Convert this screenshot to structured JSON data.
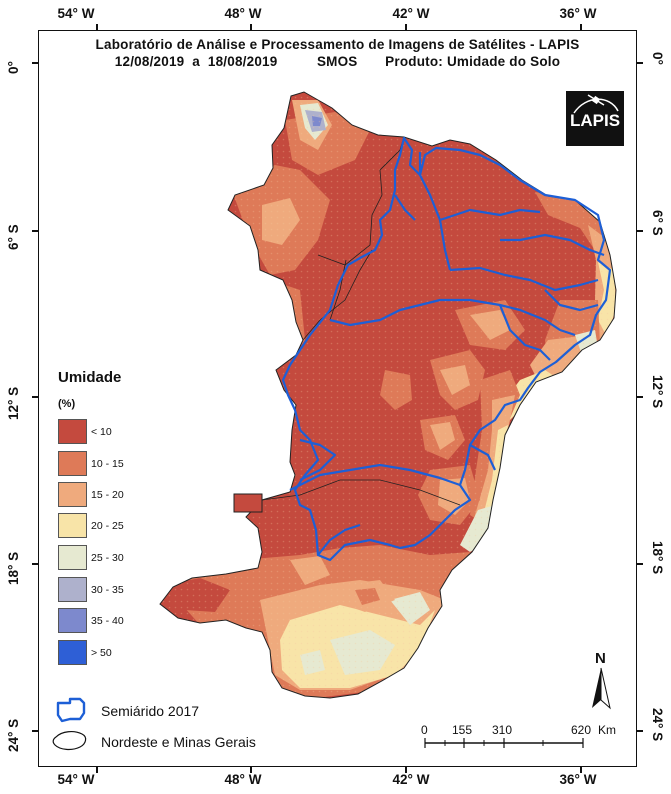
{
  "map": {
    "title_line1": "Laboratório de Análise e Processamento de Imagens de Satélites - LAPIS",
    "title_line2": "12/08/2019  a  18/08/2019          SMOS       Produto: Umidade do Solo",
    "longitude_ticks": [
      "54° W",
      "48° W",
      "42° W",
      "36° W"
    ],
    "latitude_ticks": [
      "0°",
      "6° S",
      "12° S",
      "18° S",
      "24° S"
    ],
    "logo_text": "LAPIS"
  },
  "legend": {
    "title": "Umidade",
    "unit": "(%)",
    "classes": [
      {
        "label": "< 10",
        "color": "#c44a3e"
      },
      {
        "label": "10 - 15",
        "color": "#de7a58"
      },
      {
        "label": "15 - 20",
        "color": "#efaa7d"
      },
      {
        "label": "20 - 25",
        "color": "#f8e4a8"
      },
      {
        "label": "25 - 30",
        "color": "#e6e9d1"
      },
      {
        "label": "30 - 35",
        "color": "#aeb1cc"
      },
      {
        "label": "35 - 40",
        "color": "#7d89cd"
      },
      {
        "label": "> 50",
        "color": "#2e5fd6"
      }
    ],
    "semiarid_label": "Semiárido 2017",
    "region_label": "Nordeste e Minas Gerais"
  },
  "scale": {
    "labels": [
      "0",
      "155",
      "310",
      "620",
      "Km"
    ]
  },
  "north_arrow": {
    "label": "N"
  }
}
